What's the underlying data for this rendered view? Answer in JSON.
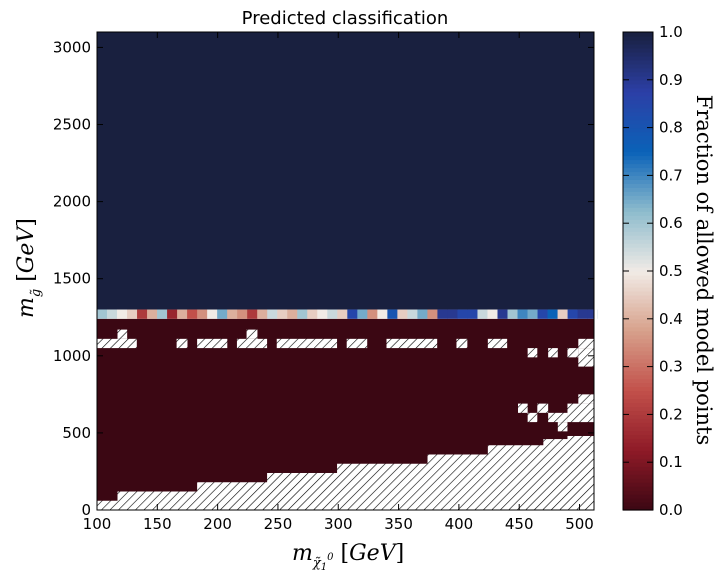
{
  "chart_data": {
    "type": "heatmap",
    "title": "Predicted classification",
    "xlabel": "m_{χ̃₁⁰} [GeV]",
    "ylabel": "m_{g̃} [GeV]",
    "x_ticks": [
      "100",
      "150",
      "200",
      "250",
      "300",
      "350",
      "400",
      "450",
      "500"
    ],
    "y_ticks": [
      "0",
      "500",
      "1000",
      "1500",
      "2000",
      "2500",
      "3000"
    ],
    "xlim": [
      100,
      512
    ],
    "ylim": [
      0,
      3100
    ],
    "cell_width": 8.3,
    "grid": false,
    "colorbar": {
      "label": "Fraction of allowed model points",
      "ticks": [
        "0.0",
        "0.1",
        "0.2",
        "0.3",
        "0.4",
        "0.5",
        "0.6",
        "0.7",
        "0.8",
        "0.9",
        "1.0"
      ],
      "range": [
        0,
        1
      ],
      "colors": [
        "#3b0713",
        "#8e1a27",
        "#c2504a",
        "#d7a08b",
        "#f1ebe6",
        "#8ebccd",
        "#0a62b8",
        "#2c3fa6",
        "#19203f"
      ]
    },
    "regions": {
      "allowed_above_gev": 1300,
      "allowed_fraction": 1.0,
      "transition_band_gev": [
        1240,
        1300
      ],
      "transition_band_fractions": [
        0.6,
        0.55,
        0.5,
        0.45,
        0.2,
        0.4,
        0.6,
        0.15,
        0.4,
        0.25,
        0.35,
        0.5,
        0.65,
        0.4,
        0.35,
        0.2,
        0.4,
        0.55,
        0.45,
        0.4,
        0.6,
        0.45,
        0.5,
        0.55,
        0.45,
        0.85,
        0.65,
        0.35,
        0.5,
        0.8,
        0.45,
        0.55,
        0.65,
        0.35,
        0.9,
        0.9,
        0.85,
        0.85,
        0.55,
        0.5,
        0.9,
        0.6,
        0.7,
        0.65,
        0.85,
        0.75,
        0.45,
        0.85,
        0.9,
        0.9,
        0.55
      ],
      "excluded_fraction": 0.0,
      "no_data_boundary": [
        {
          "x_range": [
            100,
            117
          ],
          "y_max_gev": 60
        },
        {
          "x_range": [
            117,
            183
          ],
          "y_max_gev": 120
        },
        {
          "x_range": [
            183,
            241
          ],
          "y_max_gev": 180
        },
        {
          "x_range": [
            241,
            299
          ],
          "y_max_gev": 240
        },
        {
          "x_range": [
            299,
            374
          ],
          "y_max_gev": 300
        },
        {
          "x_range": [
            374,
            424
          ],
          "y_max_gev": 360
        },
        {
          "x_range": [
            424,
            470
          ],
          "y_max_gev": 420
        },
        {
          "x_range": [
            470,
            490
          ],
          "y_max_gev": 460
        },
        {
          "x_range": [
            490,
            512
          ],
          "y_max_gev": 480
        }
      ],
      "no_data_patches_gev": [
        {
          "x": [
            100,
            133
          ],
          "y": [
            1050,
            1110
          ]
        },
        {
          "x": [
            117,
            125
          ],
          "y": [
            1110,
            1170
          ]
        },
        {
          "x": [
            166,
            175
          ],
          "y": [
            1050,
            1110
          ]
        },
        {
          "x": [
            183,
            208
          ],
          "y": [
            1050,
            1110
          ]
        },
        {
          "x": [
            216,
            241
          ],
          "y": [
            1050,
            1110
          ]
        },
        {
          "x": [
            224,
            233
          ],
          "y": [
            1110,
            1170
          ]
        },
        {
          "x": [
            249,
            299
          ],
          "y": [
            1050,
            1110
          ]
        },
        {
          "x": [
            307,
            324
          ],
          "y": [
            1050,
            1110
          ]
        },
        {
          "x": [
            340,
            382
          ],
          "y": [
            1050,
            1110
          ]
        },
        {
          "x": [
            398,
            407
          ],
          "y": [
            1050,
            1110
          ]
        },
        {
          "x": [
            424,
            440
          ],
          "y": [
            1050,
            1110
          ]
        },
        {
          "x": [
            457,
            465
          ],
          "y": [
            990,
            1050
          ]
        },
        {
          "x": [
            474,
            482
          ],
          "y": [
            990,
            1050
          ]
        },
        {
          "x": [
            490,
            499
          ],
          "y": [
            990,
            1050
          ]
        },
        {
          "x": [
            499,
            512
          ],
          "y": [
            1050,
            1110
          ]
        },
        {
          "x": [
            499,
            512
          ],
          "y": [
            930,
            1050
          ]
        },
        {
          "x": [
            449,
            457
          ],
          "y": [
            630,
            690
          ]
        },
        {
          "x": [
            457,
            465
          ],
          "y": [
            570,
            630
          ]
        },
        {
          "x": [
            465,
            474
          ],
          "y": [
            630,
            690
          ]
        },
        {
          "x": [
            474,
            490
          ],
          "y": [
            570,
            630
          ]
        },
        {
          "x": [
            482,
            490
          ],
          "y": [
            510,
            570
          ]
        },
        {
          "x": [
            490,
            512
          ],
          "y": [
            570,
            690
          ]
        },
        {
          "x": [
            499,
            512
          ],
          "y": [
            690,
            750
          ]
        }
      ]
    }
  }
}
